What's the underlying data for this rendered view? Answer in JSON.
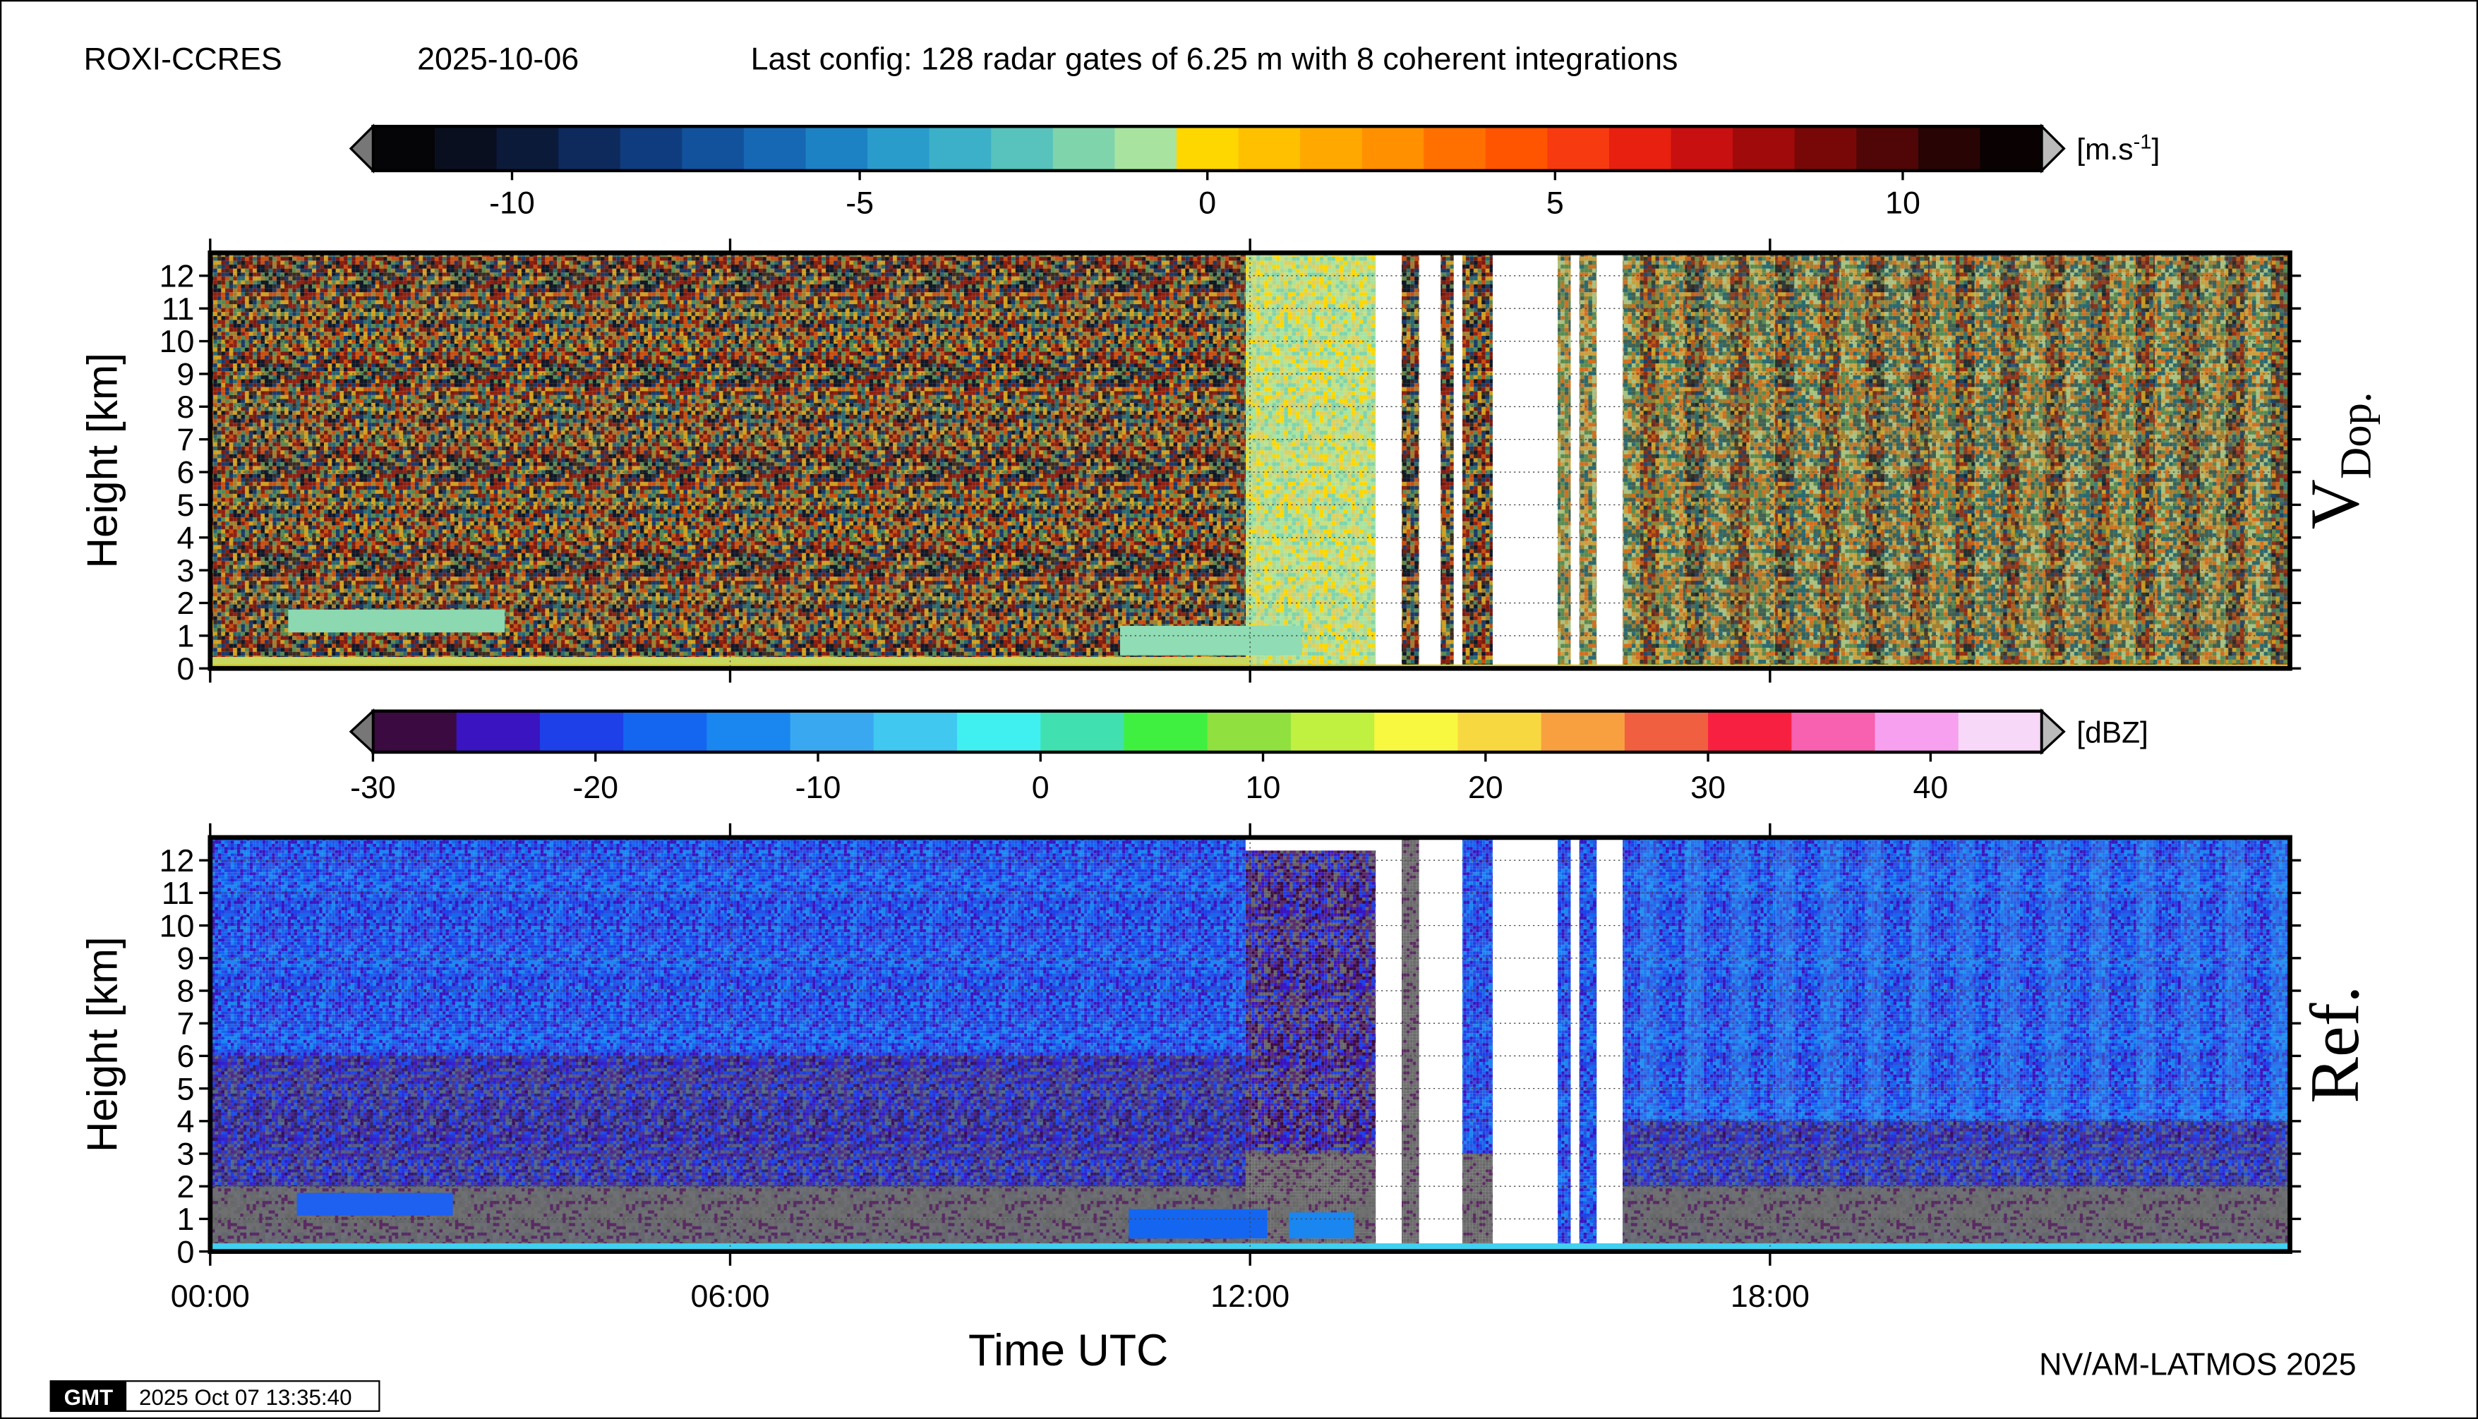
{
  "header": {
    "station": "ROXI-CCRES",
    "date": "2025-10-06",
    "config": "Last config: 128 radar gates of 6.25 m with 8 coherent integrations"
  },
  "chart_data": [
    {
      "type": "heatmap",
      "label": "V",
      "label_sub": "Dop.",
      "ylabel": "Height [km]",
      "xlim": [
        0,
        24
      ],
      "xticks": [
        0,
        6,
        12,
        18
      ],
      "ylim": [
        0,
        12.7
      ],
      "yticks": [
        0,
        1,
        2,
        3,
        4,
        5,
        6,
        7,
        8,
        9,
        10,
        11,
        12
      ],
      "colorbar": {
        "lim": [
          -12,
          12
        ],
        "ticks": [
          -10,
          -5,
          0,
          5,
          10
        ],
        "unit": "[m.s",
        "unit_sup": "-1",
        "unit_end": "]",
        "colors": [
          "#050508",
          "#0a0f20",
          "#0c1a3a",
          "#0e2a5c",
          "#0f3c7e",
          "#12529c",
          "#1668b4",
          "#1c82c4",
          "#2a9ccc",
          "#3cb0c8",
          "#58c2bc",
          "#80d4ac",
          "#a8e4a0",
          "#ffd700",
          "#ffc000",
          "#ffa800",
          "#ff9000",
          "#ff7000",
          "#ff5500",
          "#f83a10",
          "#e82010",
          "#c81010",
          "#a00a0a",
          "#780808",
          "#500606",
          "#280404",
          "#0a0202"
        ]
      }
    },
    {
      "type": "heatmap",
      "label": "Ref.",
      "ylabel": "Height [km]",
      "xlabel": "Time UTC",
      "xlim": [
        0,
        24
      ],
      "xticks": [
        {
          "value": 0,
          "label": "00:00"
        },
        {
          "value": 6,
          "label": "06:00"
        },
        {
          "value": 12,
          "label": "12:00"
        },
        {
          "value": 18,
          "label": "18:00"
        }
      ],
      "ylim": [
        0,
        12.7
      ],
      "yticks": [
        0,
        1,
        2,
        3,
        4,
        5,
        6,
        7,
        8,
        9,
        10,
        11,
        12
      ],
      "colorbar": {
        "lim": [
          -30,
          45
        ],
        "ticks": [
          -30,
          -20,
          -10,
          0,
          10,
          20,
          30,
          40
        ],
        "unit": "[dBZ]",
        "colors": [
          "#3a0a40",
          "#3a14c0",
          "#1e40e8",
          "#1466f0",
          "#1a86f0",
          "#3aa8f0",
          "#40c8f0",
          "#40f0f0",
          "#40e0b0",
          "#40f040",
          "#90e040",
          "#c0f040",
          "#f8f840",
          "#f8d840",
          "#f8a040",
          "#f06040",
          "#f82040",
          "#f860b0",
          "#f8a0f0",
          "#f8d8f8"
        ]
      }
    }
  ],
  "footer": {
    "credit": "NV/AM-LATMOS 2025",
    "stamp": "2025 Oct 07 13:35:40",
    "logo": "GMT"
  }
}
